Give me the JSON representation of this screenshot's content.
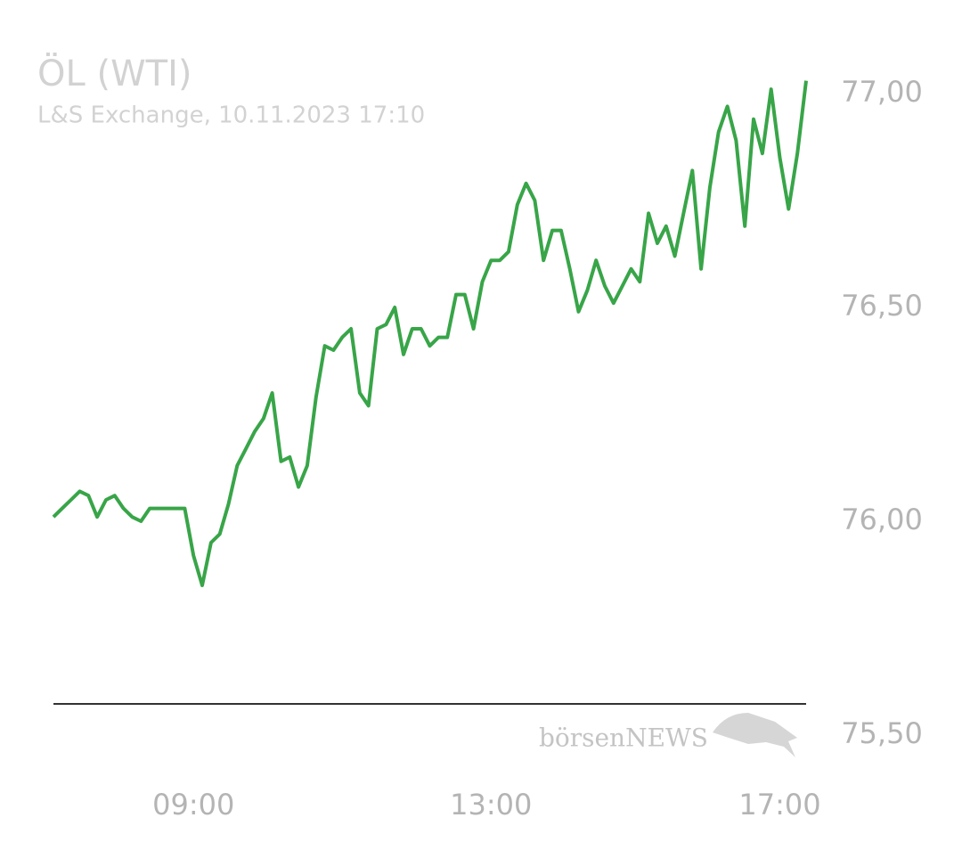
{
  "chart_data": {
    "type": "line",
    "title": "ÖL (WTI)",
    "subtitle": "L&S Exchange, 10.11.2023 17:10",
    "watermark": "börsenNEWS",
    "color": "#38a548",
    "categories": [
      null,
      null,
      null,
      null,
      null,
      null,
      null,
      null,
      null,
      null,
      null,
      null,
      null,
      null,
      null,
      null,
      "09:00",
      null,
      null,
      null,
      null,
      null,
      null,
      null,
      null,
      null,
      null,
      null,
      null,
      null,
      null,
      null,
      null,
      null,
      null,
      null,
      null,
      null,
      null,
      null,
      null,
      null,
      null,
      null,
      null,
      null,
      null,
      null,
      null,
      null,
      "13:00",
      null,
      null,
      null,
      null,
      null,
      null,
      null,
      null,
      null,
      null,
      null,
      null,
      null,
      null,
      null,
      null,
      null,
      null,
      null,
      null,
      null,
      null,
      null,
      null,
      null,
      null,
      null,
      null,
      null,
      null,
      null,
      null,
      "17:00",
      null,
      null,
      null
    ],
    "values": [
      76.01,
      76.03,
      76.05,
      76.07,
      76.06,
      76.01,
      76.05,
      76.06,
      76.03,
      76.01,
      76.0,
      76.03,
      76.03,
      76.03,
      76.03,
      76.03,
      75.92,
      75.85,
      75.95,
      75.97,
      76.04,
      76.13,
      76.17,
      76.21,
      76.24,
      76.3,
      76.14,
      76.15,
      76.08,
      76.13,
      76.29,
      76.41,
      76.4,
      76.43,
      76.45,
      76.3,
      76.27,
      76.45,
      76.46,
      76.5,
      76.39,
      76.45,
      76.45,
      76.41,
      76.43,
      76.43,
      76.53,
      76.53,
      76.45,
      76.56,
      76.61,
      76.61,
      76.63,
      76.74,
      76.79,
      76.75,
      76.61,
      76.68,
      76.68,
      76.59,
      76.49,
      76.54,
      76.61,
      76.55,
      76.51,
      76.55,
      76.59,
      76.56,
      76.72,
      76.65,
      76.69,
      76.62,
      76.72,
      76.82,
      76.59,
      76.78,
      76.91,
      76.97,
      76.89,
      76.69,
      76.94,
      76.86,
      77.01,
      76.85,
      76.73,
      76.86,
      77.03
    ],
    "ylim": [
      75.5,
      77.05
    ],
    "yticks": [
      {
        "value": 75.5,
        "label": "75,50"
      },
      {
        "value": 76,
        "label": "76,00"
      },
      {
        "value": 76.5,
        "label": "76,50"
      },
      {
        "value": 77,
        "label": "77,00"
      }
    ],
    "grid": false
  }
}
